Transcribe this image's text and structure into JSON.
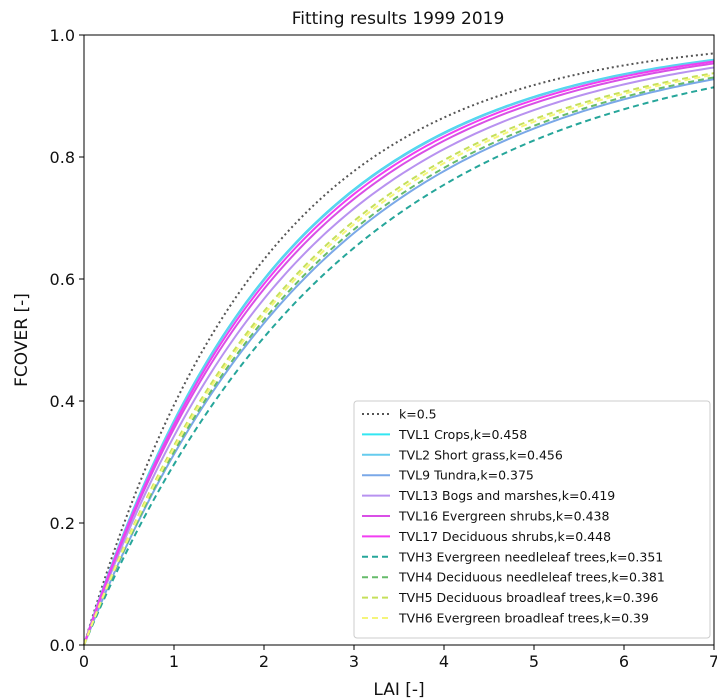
{
  "chart_data": {
    "type": "line",
    "title": "Fitting results 1999 2019",
    "xlabel": "LAI [-]",
    "ylabel": "FCOVER [-]",
    "xlim": [
      0,
      7
    ],
    "ylim": [
      0,
      1.0
    ],
    "xticks": [
      0,
      1,
      2,
      3,
      4,
      5,
      6,
      7
    ],
    "yticks": [
      0.0,
      0.2,
      0.4,
      0.6,
      0.8,
      1.0
    ],
    "ytick_labels": [
      "0.0",
      "0.2",
      "0.4",
      "0.6",
      "0.8",
      "1.0"
    ],
    "grid": false,
    "legend_position": "lower-right",
    "function": "FCOVER = 1 - exp(-k * LAI)",
    "series": [
      {
        "name": "k=0.5",
        "k": 0.5,
        "color": "#555555",
        "style": "dotted"
      },
      {
        "name": "TVL1 Crops,k=0.458",
        "k": 0.458,
        "color": "#33e6f2",
        "style": "solid"
      },
      {
        "name": "TVL2 Short grass,k=0.456",
        "k": 0.456,
        "color": "#66ccee",
        "style": "solid"
      },
      {
        "name": "TVL9 Tundra,k=0.375",
        "k": 0.375,
        "color": "#7aa8e8",
        "style": "solid"
      },
      {
        "name": "TVL13 Bogs and marshes,k=0.419",
        "k": 0.419,
        "color": "#b892f0",
        "style": "solid"
      },
      {
        "name": "TVL16 Evergreen shrubs,k=0.438",
        "k": 0.438,
        "color": "#d94fe6",
        "style": "solid"
      },
      {
        "name": "TVL17 Deciduous shrubs,k=0.448",
        "k": 0.448,
        "color": "#f23ef2",
        "style": "solid"
      },
      {
        "name": "TVH3 Evergreen needleleaf trees,k=0.351",
        "k": 0.351,
        "color": "#26a69a",
        "style": "dashed"
      },
      {
        "name": "TVH4 Deciduous needleleaf trees,k=0.381",
        "k": 0.381,
        "color": "#66bb6a",
        "style": "dashed"
      },
      {
        "name": "TVH5 Deciduous broadleaf trees,k=0.396",
        "k": 0.396,
        "color": "#c6e05a",
        "style": "dashed"
      },
      {
        "name": "TVH6 Evergreen broadleaf trees,k=0.39",
        "k": 0.39,
        "color": "#f5f57a",
        "style": "dashed"
      }
    ]
  }
}
